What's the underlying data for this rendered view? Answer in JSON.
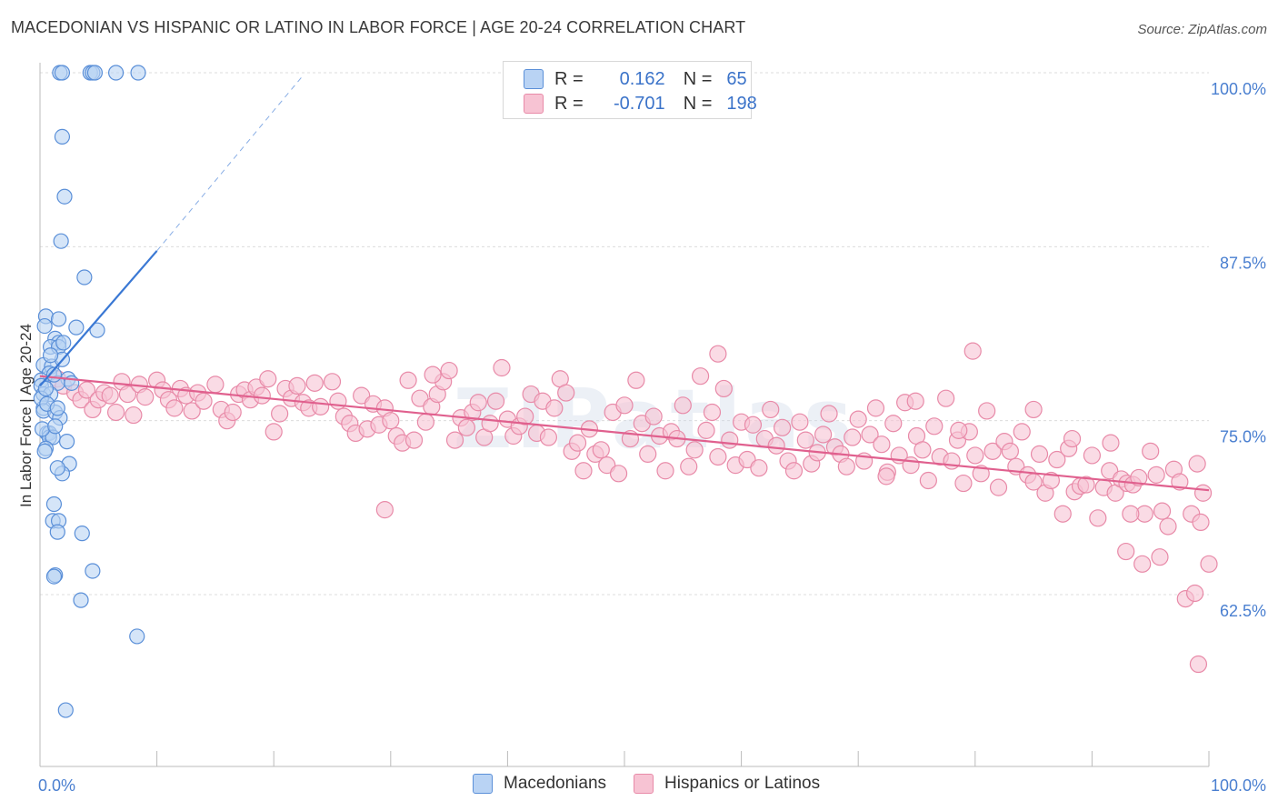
{
  "header": {
    "title": "MACEDONIAN VS HISPANIC OR LATINO IN LABOR FORCE | AGE 20-24 CORRELATION CHART",
    "source": "Source: ZipAtlas.com"
  },
  "legend": {
    "rows": [
      {
        "r_label": "R =",
        "r_value": "0.162",
        "n_label": "N =",
        "n_value": "65"
      },
      {
        "r_label": "R =",
        "r_value": "-0.701",
        "n_label": "N =",
        "n_value": "198"
      }
    ],
    "bottom": [
      "Macedonians",
      "Hispanics or Latinos"
    ]
  },
  "colors": {
    "blue_fill": "#b9d3f4",
    "blue_stroke": "#5a8fd8",
    "blue_line": "#3a78d4",
    "pink_fill": "#f7c3d3",
    "pink_stroke": "#e88aa8",
    "pink_line": "#e0608e",
    "grid": "#dcdcdc",
    "tick_text": "#4a7fd0"
  },
  "chart_data": {
    "type": "scatter",
    "title": "MACEDONIAN VS HISPANIC OR LATINO IN LABOR FORCE | AGE 20-24 CORRELATION CHART",
    "xlabel": "",
    "ylabel": "In Labor Force | Age 20-24",
    "xlim": [
      0,
      100
    ],
    "ylim": [
      52,
      101.5
    ],
    "x_tick_labels": [
      {
        "x": 0,
        "label": "0.0%"
      },
      {
        "x": 100,
        "label": "100.0%"
      }
    ],
    "y_tick_labels": [
      {
        "y": 100,
        "label": "100.0%"
      },
      {
        "y": 87.5,
        "label": "87.5%"
      },
      {
        "y": 75,
        "label": "75.0%"
      },
      {
        "y": 62.5,
        "label": "62.5%"
      }
    ],
    "grid": true,
    "watermark": "ZIPatlas",
    "series": [
      {
        "name": "Macedonians",
        "color": "blue",
        "R": 0.162,
        "N": 65,
        "trend": {
          "x1": 0,
          "y1": 77.5,
          "x2": 10,
          "y2": 87.2
        },
        "trend_dashed": {
          "x1": 10,
          "y1": 87.2,
          "x2": 22.5,
          "y2": 99.8
        },
        "points": [
          [
            1.7,
            100
          ],
          [
            1.9,
            100
          ],
          [
            4.3,
            100
          ],
          [
            4.5,
            100
          ],
          [
            6.5,
            100
          ],
          [
            8.4,
            100
          ],
          [
            4.7,
            100
          ],
          [
            1.9,
            95.4
          ],
          [
            2.1,
            91.1
          ],
          [
            1.8,
            87.9
          ],
          [
            3.8,
            85.3
          ],
          [
            0.5,
            82.5
          ],
          [
            1.6,
            82.3
          ],
          [
            0.4,
            81.8
          ],
          [
            3.1,
            81.7
          ],
          [
            4.9,
            81.5
          ],
          [
            1.3,
            80.9
          ],
          [
            1.6,
            80.6
          ],
          [
            0.9,
            80.3
          ],
          [
            1.6,
            80.3
          ],
          [
            2.0,
            80.6
          ],
          [
            0.3,
            79.0
          ],
          [
            1.0,
            78.9
          ],
          [
            0.8,
            78.4
          ],
          [
            2.4,
            78.0
          ],
          [
            0.1,
            77.9
          ],
          [
            0.1,
            77.5
          ],
          [
            1.5,
            77.7
          ],
          [
            0.3,
            76.9
          ],
          [
            0.9,
            76.9
          ],
          [
            0.3,
            75.9
          ],
          [
            0.1,
            76.6
          ],
          [
            0.3,
            75.7
          ],
          [
            1.3,
            75.6
          ],
          [
            1.7,
            75.2
          ],
          [
            0.6,
            74.1
          ],
          [
            0.8,
            74.1
          ],
          [
            0.8,
            73.8
          ],
          [
            1.1,
            73.8
          ],
          [
            0.5,
            73.0
          ],
          [
            0.4,
            72.8
          ],
          [
            2.5,
            71.9
          ],
          [
            1.9,
            71.2
          ],
          [
            1.5,
            71.6
          ],
          [
            1.2,
            69.0
          ],
          [
            1.1,
            67.8
          ],
          [
            1.6,
            67.8
          ],
          [
            1.5,
            67.0
          ],
          [
            3.6,
            66.9
          ],
          [
            1.3,
            63.9
          ],
          [
            1.2,
            63.8
          ],
          [
            4.5,
            64.2
          ],
          [
            3.5,
            62.1
          ],
          [
            8.3,
            59.5
          ],
          [
            2.2,
            54.2
          ],
          [
            0.5,
            77.3
          ],
          [
            1.2,
            78.3
          ],
          [
            1.9,
            79.4
          ],
          [
            0.2,
            74.4
          ],
          [
            0.6,
            76.2
          ],
          [
            1.3,
            74.6
          ],
          [
            2.7,
            77.7
          ],
          [
            0.9,
            79.7
          ],
          [
            1.5,
            75.9
          ],
          [
            2.3,
            73.5
          ]
        ]
      },
      {
        "name": "Hispanics or Latinos",
        "color": "pink",
        "R": -0.701,
        "N": 198,
        "trend": {
          "x1": 0,
          "y1": 78.2,
          "x2": 100,
          "y2": 70.0
        },
        "points": [
          [
            1.5,
            78.0
          ],
          [
            2.0,
            77.5
          ],
          [
            3.0,
            77.0
          ],
          [
            3.5,
            76.5
          ],
          [
            4.0,
            77.2
          ],
          [
            4.5,
            75.8
          ],
          [
            5.0,
            76.5
          ],
          [
            5.5,
            77.0
          ],
          [
            6.0,
            76.8
          ],
          [
            6.5,
            75.6
          ],
          [
            7.0,
            77.8
          ],
          [
            7.5,
            76.9
          ],
          [
            8.0,
            75.4
          ],
          [
            8.5,
            77.6
          ],
          [
            9.0,
            76.7
          ],
          [
            10.0,
            77.9
          ],
          [
            10.5,
            77.2
          ],
          [
            11.0,
            76.5
          ],
          [
            11.5,
            75.9
          ],
          [
            12.0,
            77.3
          ],
          [
            12.5,
            76.8
          ],
          [
            13.0,
            75.7
          ],
          [
            13.5,
            77.0
          ],
          [
            14.0,
            76.4
          ],
          [
            15.0,
            77.6
          ],
          [
            15.5,
            75.8
          ],
          [
            16.0,
            75.0
          ],
          [
            16.5,
            75.6
          ],
          [
            17.0,
            76.9
          ],
          [
            17.5,
            77.2
          ],
          [
            18.0,
            76.5
          ],
          [
            18.5,
            77.4
          ],
          [
            19.0,
            76.8
          ],
          [
            19.5,
            78.0
          ],
          [
            20.0,
            74.2
          ],
          [
            20.5,
            75.5
          ],
          [
            21.0,
            77.3
          ],
          [
            21.5,
            76.6
          ],
          [
            22.0,
            77.5
          ],
          [
            22.5,
            76.3
          ],
          [
            23.0,
            75.9
          ],
          [
            23.5,
            77.7
          ],
          [
            24.0,
            76.0
          ],
          [
            25.0,
            77.8
          ],
          [
            25.5,
            76.4
          ],
          [
            26.0,
            75.3
          ],
          [
            26.5,
            74.8
          ],
          [
            27.0,
            74.1
          ],
          [
            27.5,
            76.8
          ],
          [
            28.0,
            74.4
          ],
          [
            28.5,
            76.2
          ],
          [
            29.0,
            74.7
          ],
          [
            29.5,
            75.9
          ],
          [
            30.0,
            75.0
          ],
          [
            30.5,
            73.9
          ],
          [
            31.0,
            73.4
          ],
          [
            31.5,
            77.9
          ],
          [
            32.0,
            73.6
          ],
          [
            32.5,
            76.6
          ],
          [
            33.0,
            74.9
          ],
          [
            33.5,
            76.0
          ],
          [
            34.0,
            76.9
          ],
          [
            34.5,
            77.8
          ],
          [
            35.0,
            78.6
          ],
          [
            35.5,
            73.6
          ],
          [
            36.0,
            75.2
          ],
          [
            36.5,
            74.5
          ],
          [
            37.0,
            75.6
          ],
          [
            37.5,
            76.3
          ],
          [
            38.0,
            73.8
          ],
          [
            38.5,
            74.8
          ],
          [
            39.0,
            76.4
          ],
          [
            39.5,
            78.8
          ],
          [
            40.0,
            75.1
          ],
          [
            40.5,
            73.9
          ],
          [
            41.0,
            74.6
          ],
          [
            41.5,
            75.3
          ],
          [
            42.0,
            76.9
          ],
          [
            42.5,
            74.1
          ],
          [
            43.0,
            76.4
          ],
          [
            43.5,
            73.8
          ],
          [
            44.0,
            75.9
          ],
          [
            44.5,
            78.0
          ],
          [
            45.0,
            77.0
          ],
          [
            45.5,
            72.8
          ],
          [
            46.0,
            73.4
          ],
          [
            46.5,
            71.4
          ],
          [
            47.0,
            74.4
          ],
          [
            47.5,
            72.6
          ],
          [
            48.0,
            72.9
          ],
          [
            48.5,
            71.8
          ],
          [
            49.0,
            75.6
          ],
          [
            49.5,
            71.2
          ],
          [
            50.0,
            76.1
          ],
          [
            50.5,
            73.7
          ],
          [
            51.0,
            77.9
          ],
          [
            51.5,
            74.8
          ],
          [
            52.0,
            72.6
          ],
          [
            52.5,
            75.3
          ],
          [
            53.0,
            73.9
          ],
          [
            53.5,
            71.4
          ],
          [
            54.0,
            74.2
          ],
          [
            54.5,
            73.7
          ],
          [
            55.0,
            76.1
          ],
          [
            55.5,
            71.7
          ],
          [
            56.0,
            72.9
          ],
          [
            56.5,
            78.2
          ],
          [
            57.0,
            74.3
          ],
          [
            57.5,
            75.6
          ],
          [
            58.0,
            72.4
          ],
          [
            58.5,
            77.3
          ],
          [
            59.0,
            73.6
          ],
          [
            59.5,
            71.8
          ],
          [
            60.0,
            74.9
          ],
          [
            60.5,
            72.2
          ],
          [
            61.0,
            74.7
          ],
          [
            61.5,
            71.6
          ],
          [
            62.0,
            73.7
          ],
          [
            62.5,
            75.8
          ],
          [
            63.0,
            73.2
          ],
          [
            63.5,
            74.5
          ],
          [
            64.0,
            72.1
          ],
          [
            64.5,
            71.4
          ],
          [
            65.0,
            74.9
          ],
          [
            65.5,
            73.6
          ],
          [
            66.0,
            71.9
          ],
          [
            66.5,
            72.7
          ],
          [
            67.0,
            74.0
          ],
          [
            67.5,
            75.5
          ],
          [
            68.0,
            73.1
          ],
          [
            68.5,
            72.6
          ],
          [
            69.0,
            71.7
          ],
          [
            69.5,
            73.8
          ],
          [
            70.0,
            75.1
          ],
          [
            70.5,
            72.1
          ],
          [
            71.0,
            74.0
          ],
          [
            71.5,
            75.9
          ],
          [
            72.0,
            73.3
          ],
          [
            72.5,
            71.3
          ],
          [
            73.0,
            74.8
          ],
          [
            73.5,
            72.5
          ],
          [
            74.0,
            76.3
          ],
          [
            74.5,
            71.8
          ],
          [
            75.0,
            73.9
          ],
          [
            75.5,
            72.9
          ],
          [
            76.0,
            70.7
          ],
          [
            76.5,
            74.6
          ],
          [
            77.0,
            72.4
          ],
          [
            77.5,
            76.6
          ],
          [
            78.0,
            72.1
          ],
          [
            78.5,
            73.6
          ],
          [
            79.0,
            70.5
          ],
          [
            79.5,
            74.2
          ],
          [
            80.0,
            72.5
          ],
          [
            80.5,
            71.2
          ],
          [
            81.0,
            75.7
          ],
          [
            81.5,
            72.8
          ],
          [
            82.0,
            70.2
          ],
          [
            82.5,
            73.5
          ],
          [
            83.0,
            72.8
          ],
          [
            83.5,
            71.7
          ],
          [
            84.0,
            74.2
          ],
          [
            84.5,
            71.1
          ],
          [
            85.0,
            70.6
          ],
          [
            85.5,
            72.6
          ],
          [
            86.0,
            69.8
          ],
          [
            86.5,
            70.7
          ],
          [
            87.0,
            72.2
          ],
          [
            87.5,
            68.3
          ],
          [
            88.0,
            73.0
          ],
          [
            88.5,
            69.9
          ],
          [
            89.0,
            70.3
          ],
          [
            89.5,
            70.4
          ],
          [
            90.0,
            72.5
          ],
          [
            90.5,
            68.0
          ],
          [
            91.0,
            70.2
          ],
          [
            91.5,
            71.4
          ],
          [
            92.0,
            69.8
          ],
          [
            92.5,
            70.8
          ],
          [
            93.0,
            70.5
          ],
          [
            93.5,
            70.4
          ],
          [
            94.0,
            70.9
          ],
          [
            94.5,
            68.3
          ],
          [
            95.0,
            72.8
          ],
          [
            95.5,
            71.1
          ],
          [
            96.0,
            68.5
          ],
          [
            96.5,
            67.4
          ],
          [
            97.0,
            71.5
          ],
          [
            97.5,
            70.6
          ],
          [
            98.0,
            62.2
          ],
          [
            98.5,
            68.3
          ],
          [
            99.0,
            71.9
          ],
          [
            99.5,
            69.8
          ],
          [
            100.0,
            64.7
          ],
          [
            99.3,
            67.7
          ],
          [
            98.8,
            62.6
          ],
          [
            95.8,
            65.2
          ],
          [
            92.9,
            65.6
          ],
          [
            94.3,
            64.7
          ],
          [
            93.3,
            68.3
          ],
          [
            99.1,
            57.5
          ],
          [
            29.5,
            68.6
          ],
          [
            79.8,
            80.0
          ],
          [
            58.0,
            79.8
          ],
          [
            33.6,
            78.3
          ],
          [
            91.6,
            73.4
          ],
          [
            85.0,
            75.8
          ],
          [
            88.3,
            73.7
          ],
          [
            78.6,
            74.3
          ],
          [
            72.4,
            71.0
          ],
          [
            74.9,
            76.4
          ]
        ]
      }
    ]
  }
}
